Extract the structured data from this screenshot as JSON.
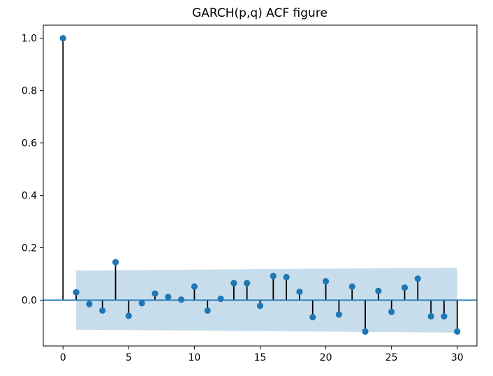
{
  "chart_data": {
    "type": "stem",
    "title": "GARCH(p,q) ACF figure",
    "xlabel": "",
    "ylabel": "",
    "xlim": [
      -1.5,
      31.5
    ],
    "ylim": [
      -0.175,
      1.05
    ],
    "xticks": [
      0,
      5,
      10,
      15,
      20,
      25,
      30
    ],
    "xtick_labels": [
      "0",
      "5",
      "10",
      "15",
      "20",
      "25",
      "30"
    ],
    "yticks": [
      0.0,
      0.2,
      0.4,
      0.6,
      0.8,
      1.0
    ],
    "ytick_labels": [
      "0.0",
      "0.2",
      "0.4",
      "0.6",
      "0.8",
      "1.0"
    ],
    "grid": false,
    "lags": [
      0,
      1,
      2,
      3,
      4,
      5,
      6,
      7,
      8,
      9,
      10,
      11,
      12,
      13,
      14,
      15,
      16,
      17,
      18,
      19,
      20,
      21,
      22,
      23,
      24,
      25,
      26,
      27,
      28,
      29,
      30
    ],
    "acf": [
      1.0,
      0.03,
      -0.015,
      -0.04,
      0.145,
      -0.06,
      -0.012,
      0.025,
      0.012,
      0.002,
      0.052,
      -0.04,
      0.005,
      0.065,
      0.065,
      -0.022,
      0.092,
      0.088,
      0.032,
      -0.065,
      0.072,
      -0.055,
      0.052,
      -0.12,
      0.035,
      -0.045,
      0.048,
      0.082,
      -0.062,
      -0.062,
      -0.12
    ],
    "confidence_band": {
      "lags": [
        1,
        30
      ],
      "upper": [
        0.113,
        0.124
      ],
      "lower": [
        -0.113,
        -0.124
      ]
    },
    "colors": {
      "marker": "#1f77b4",
      "stem": "#000000",
      "band": "#1f77b4",
      "baseline": "#1f77b4"
    }
  }
}
